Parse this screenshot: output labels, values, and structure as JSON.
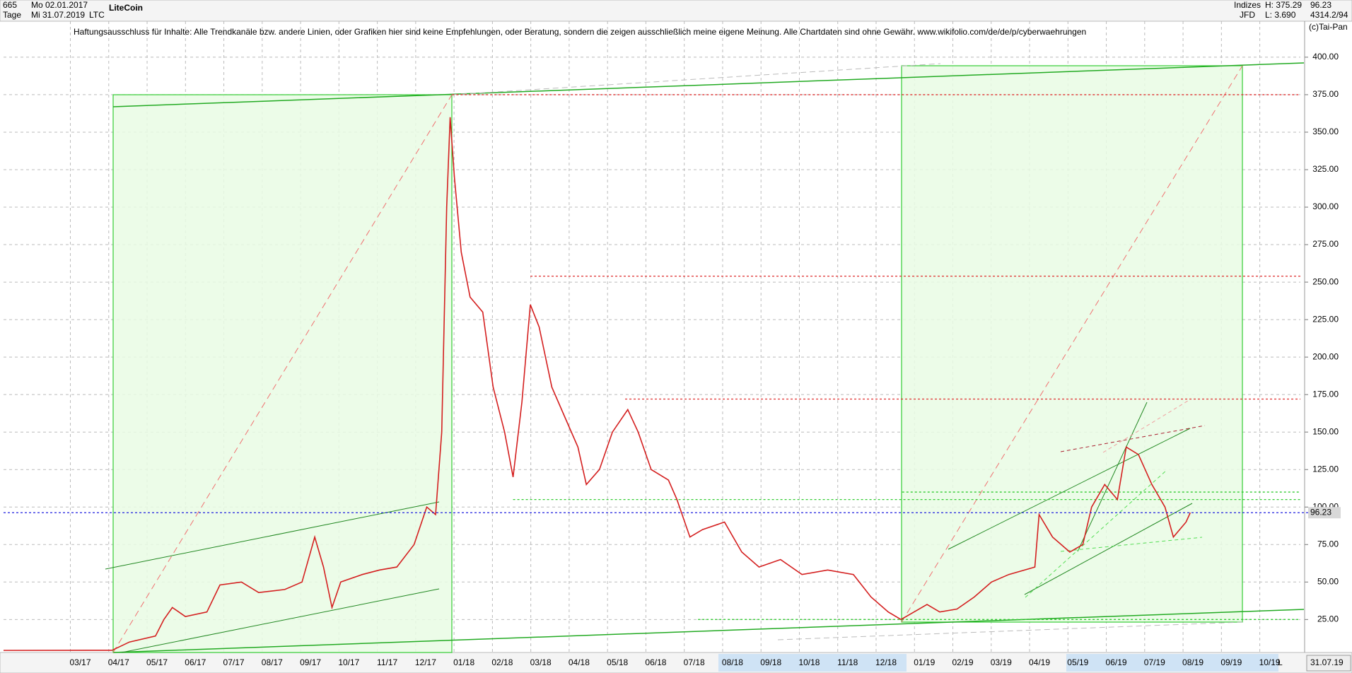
{
  "header": {
    "count": "665",
    "period": "Tage",
    "from_date": "Mo 02.01.2017",
    "to_date": "Mi 31.07.2019",
    "name": "LiteCoin",
    "symbol": "LTC",
    "group": "Indizes",
    "source": "JFD",
    "high": "H: 375.29",
    "low": "L: 3.690",
    "last": "96.23",
    "stats": "4314.2/94",
    "copyright": "(c)Tai-Pan",
    "disclaimer": "Haftungsausschluss für Inhalte: Alle Trendkanäle bzw. andere Linien, oder Grafiken hier sind keine Empfehlungen, oder Beratung, sondern die zeigen ausschließlich meine eigene Meinung. Alle Chartdaten sind ohne Gewähr.  www.wikifolio.com/de/de/p/cyberwaehrungen",
    "end_date": "31.07.19",
    "scale_mode": "L"
  },
  "chart_data": {
    "type": "line",
    "title": "LiteCoin",
    "xlim": [
      0,
      33.8
    ],
    "ylim": [
      3,
      424
    ],
    "grid": true,
    "xticks": [
      {
        "value": 2,
        "label": "03/17"
      },
      {
        "value": 3,
        "label": "04/17"
      },
      {
        "value": 4,
        "label": "05/17"
      },
      {
        "value": 5,
        "label": "06/17"
      },
      {
        "value": 6,
        "label": "07/17"
      },
      {
        "value": 7,
        "label": "08/17"
      },
      {
        "value": 8,
        "label": "09/17"
      },
      {
        "value": 9,
        "label": "10/17"
      },
      {
        "value": 10,
        "label": "11/17"
      },
      {
        "value": 11,
        "label": "12/17"
      },
      {
        "value": 12,
        "label": "01/18"
      },
      {
        "value": 13,
        "label": "02/18"
      },
      {
        "value": 14,
        "label": "03/18"
      },
      {
        "value": 15,
        "label": "04/18"
      },
      {
        "value": 16,
        "label": "05/18"
      },
      {
        "value": 17,
        "label": "06/18"
      },
      {
        "value": 18,
        "label": "07/18"
      },
      {
        "value": 19,
        "label": "08/18"
      },
      {
        "value": 20,
        "label": "09/18"
      },
      {
        "value": 21,
        "label": "10/18"
      },
      {
        "value": 22,
        "label": "11/18"
      },
      {
        "value": 23,
        "label": "12/18"
      },
      {
        "value": 24,
        "label": "01/19"
      },
      {
        "value": 25,
        "label": "02/19"
      },
      {
        "value": 26,
        "label": "03/19"
      },
      {
        "value": 27,
        "label": "04/19"
      },
      {
        "value": 28,
        "label": "05/19"
      },
      {
        "value": 29,
        "label": "06/19"
      },
      {
        "value": 30,
        "label": "07/19"
      },
      {
        "value": 31,
        "label": "08/19"
      },
      {
        "value": 32,
        "label": "09/19"
      },
      {
        "value": 33,
        "label": "10/19"
      }
    ],
    "yticks": [
      {
        "value": 25,
        "label": "25.00"
      },
      {
        "value": 50,
        "label": "50.00"
      },
      {
        "value": 75,
        "label": "75.00"
      },
      {
        "value": 100,
        "label": "100.00"
      },
      {
        "value": 125,
        "label": "125.00"
      },
      {
        "value": 150,
        "label": "150.00"
      },
      {
        "value": 175,
        "label": "175.00"
      },
      {
        "value": 200,
        "label": "200.00"
      },
      {
        "value": 225,
        "label": "225.00"
      },
      {
        "value": 250,
        "label": "250.00"
      },
      {
        "value": 275,
        "label": "275.00"
      },
      {
        "value": 300,
        "label": "300.00"
      },
      {
        "value": 325,
        "label": "325.00"
      },
      {
        "value": 350,
        "label": "350.00"
      },
      {
        "value": 375,
        "label": "375.00"
      },
      {
        "value": 400,
        "label": "400.00"
      }
    ],
    "series": [
      {
        "name": "LTC",
        "color": "#d41f1f",
        "x": [
          0,
          2.83,
          3.28,
          3.96,
          4.18,
          4.4,
          4.74,
          5.3,
          5.64,
          6.2,
          6.65,
          7.33,
          7.78,
          8.11,
          8.34,
          8.56,
          8.79,
          9.35,
          9.8,
          10.25,
          10.7,
          11.03,
          11.26,
          11.42,
          11.55,
          11.64,
          11.75,
          11.93,
          12.16,
          12.49,
          12.76,
          13.06,
          13.28,
          13.51,
          13.73,
          13.96,
          14.29,
          14.63,
          14.97,
          15.19,
          15.53,
          15.87,
          16.27,
          16.54,
          16.88,
          17.33,
          17.55,
          17.89,
          18.22,
          18.79,
          19.24,
          19.69,
          20.25,
          20.81,
          21.48,
          22.15,
          22.61,
          23.06,
          23.39,
          23.73,
          24.07,
          24.4,
          24.85,
          25.3,
          25.75,
          26.2,
          26.88,
          26.99,
          27.34,
          27.79,
          28.13,
          28.36,
          28.7,
          29.03,
          29.26,
          29.58,
          29.93,
          30.27,
          30.49,
          30.82,
          30.93
        ],
        "values": [
          4.4,
          4.5,
          10,
          14,
          25,
          33,
          27,
          30,
          48,
          50,
          43,
          45,
          50,
          80,
          60,
          33,
          50,
          55,
          58,
          60,
          75,
          100,
          95,
          150,
          300,
          360,
          320,
          270,
          240,
          230,
          180,
          150,
          120,
          170,
          235,
          220,
          180,
          160,
          140,
          115,
          125,
          150,
          165,
          150,
          125,
          118,
          105,
          80,
          85,
          90,
          70,
          60,
          65,
          55,
          58,
          55,
          40,
          30,
          25,
          30,
          35,
          30,
          32,
          40,
          50,
          55,
          60,
          95,
          80,
          70,
          75,
          100,
          115,
          105,
          140,
          135,
          115,
          100,
          80,
          90,
          96.23
        ]
      }
    ],
    "levels": [
      {
        "value": 375,
        "x": 11.69,
        "color": "#e03030"
      },
      {
        "value": 254,
        "x": 13.73,
        "color": "#e03030"
      },
      {
        "value": 172,
        "x": 16.2,
        "color": "#e03030"
      },
      {
        "value": 110,
        "x": 23.42,
        "color": "#33cc33"
      },
      {
        "value": 105,
        "x": 13.28,
        "color": "#33cc33"
      },
      {
        "value": 25,
        "x": 18.1,
        "color": "#33cc33"
      }
    ],
    "last_value": 96.23,
    "last_color": "#2020e0"
  }
}
